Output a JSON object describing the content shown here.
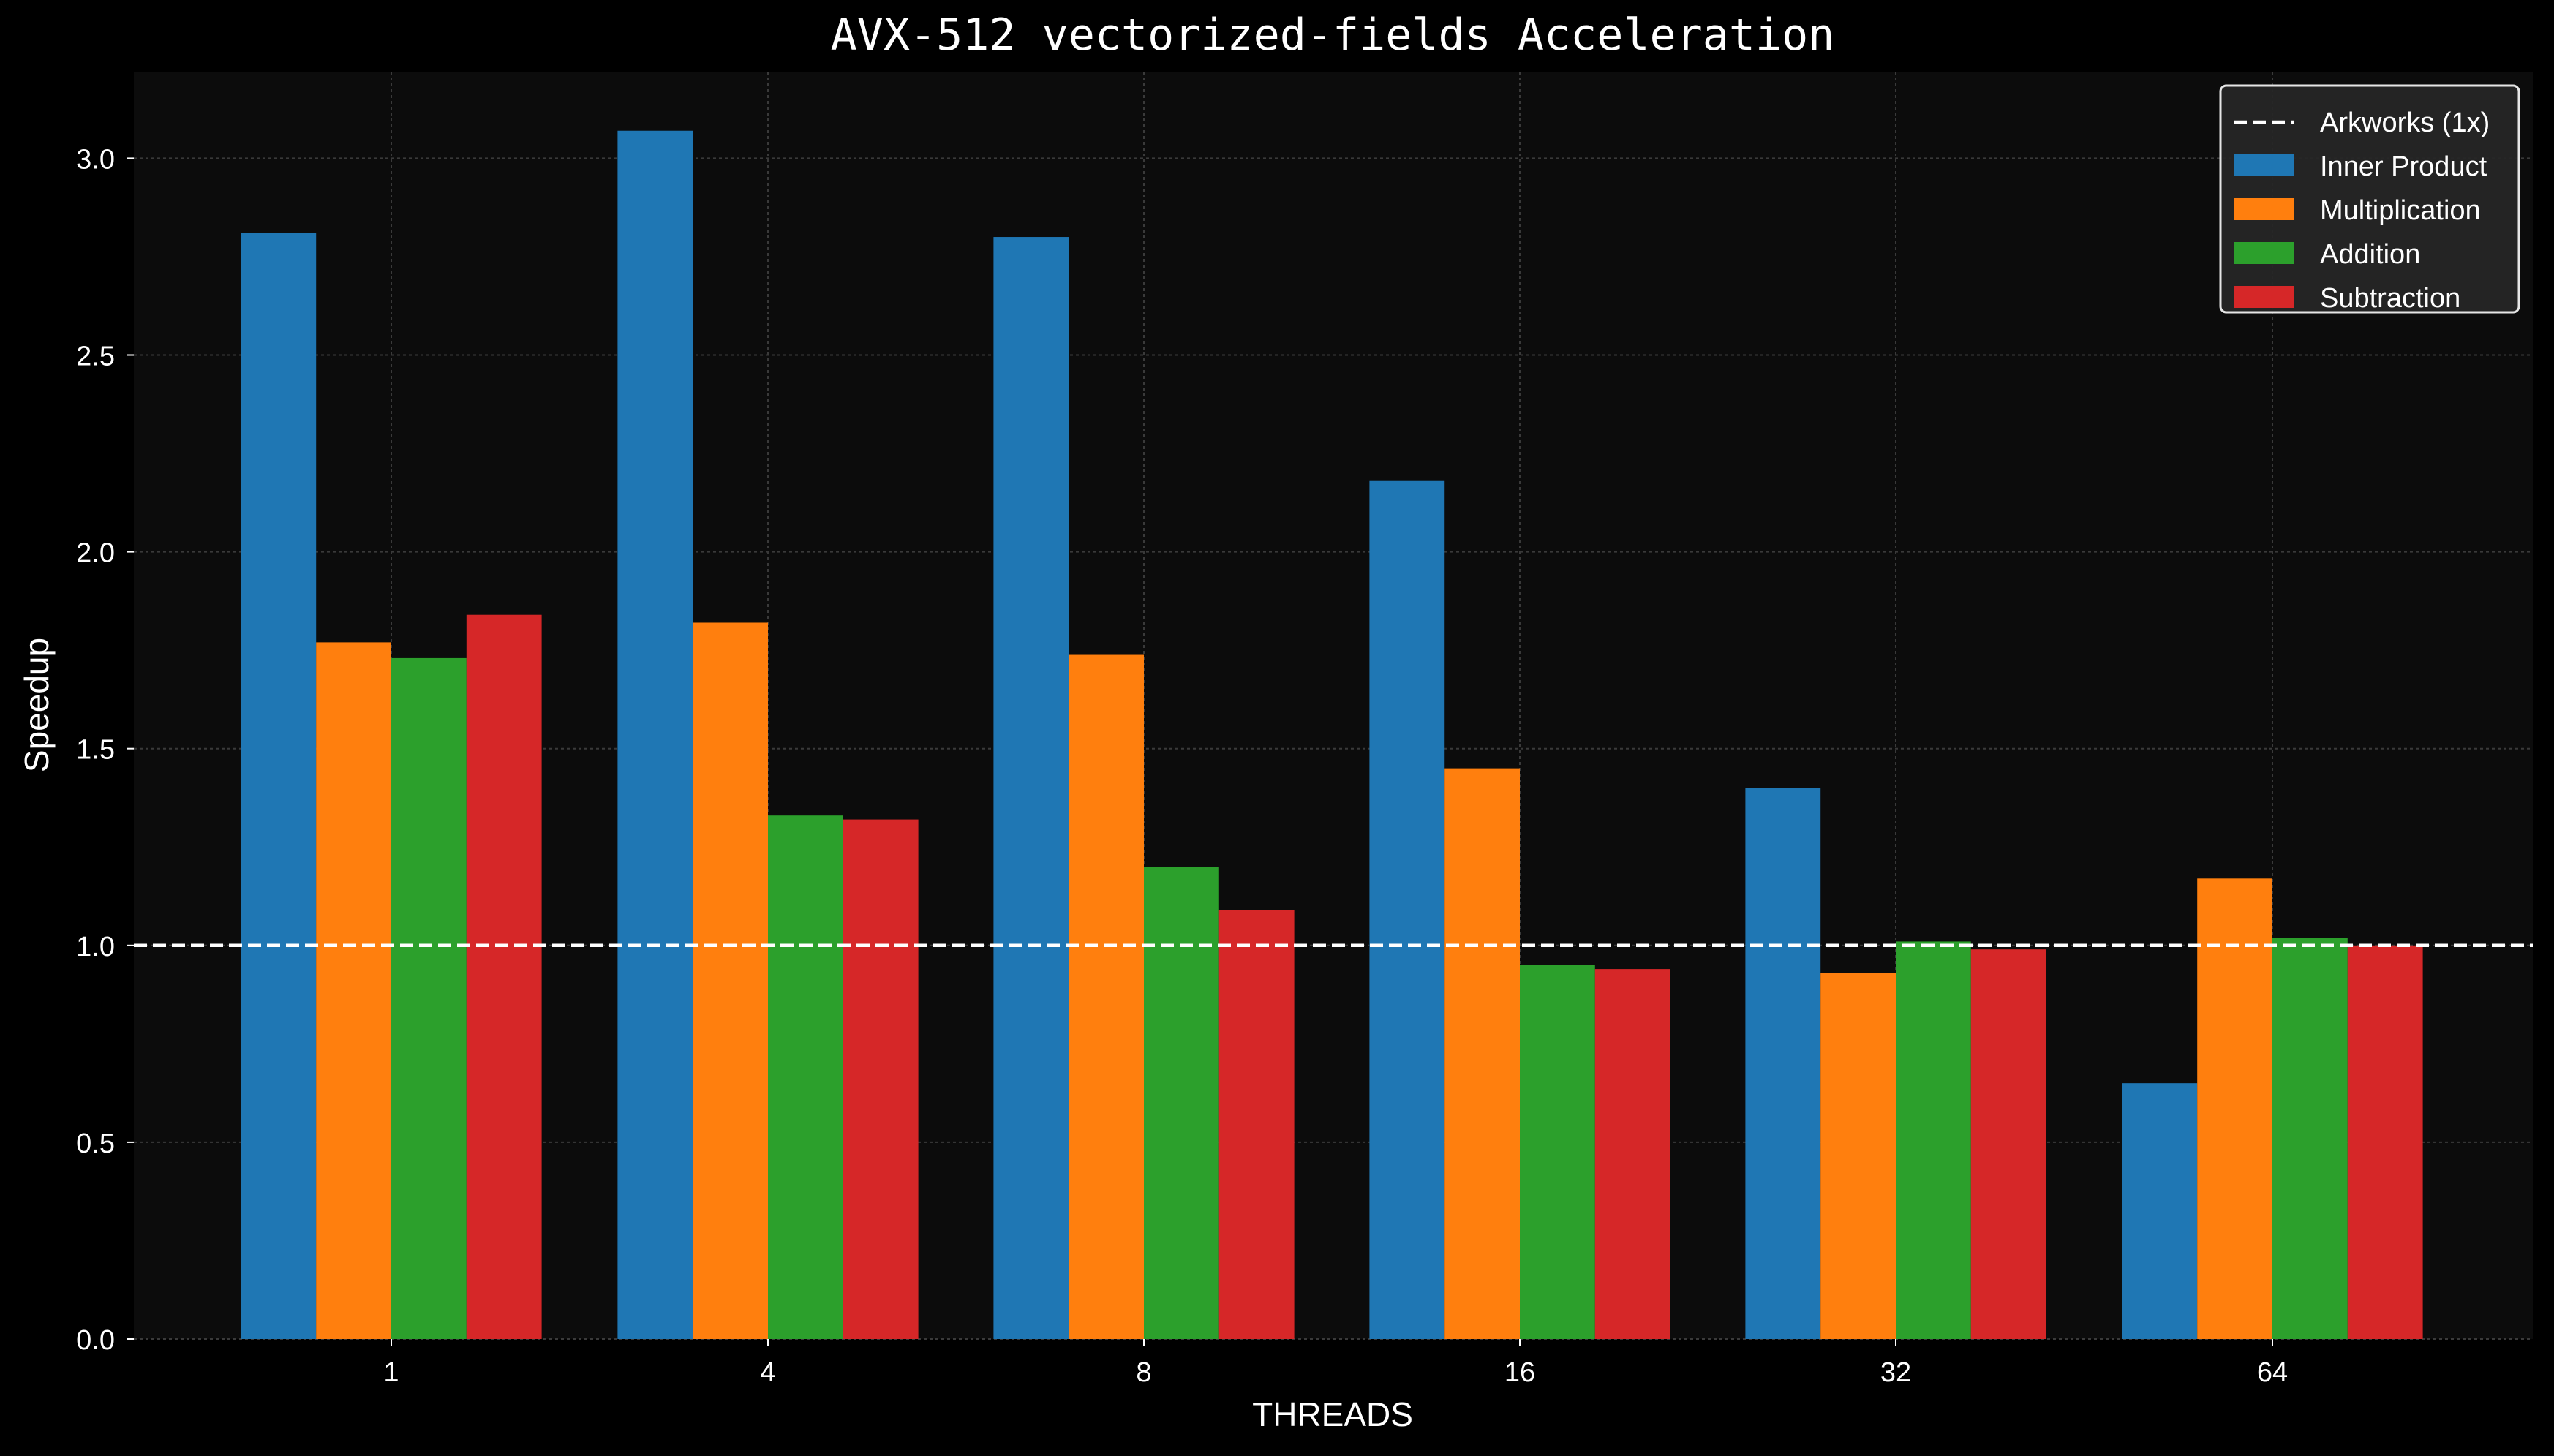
{
  "chart_data": {
    "type": "bar",
    "title": "AVX-512 vectorized-fields Acceleration",
    "xlabel": "THREADS",
    "ylabel": "Speedup",
    "categories": [
      "1",
      "4",
      "8",
      "16",
      "32",
      "64"
    ],
    "ylim": [
      0,
      3.22
    ],
    "yticks": [
      "0.0",
      "0.5",
      "1.0",
      "1.5",
      "2.0",
      "2.5",
      "3.0"
    ],
    "grid": true,
    "legend_position": "top-right",
    "baseline": {
      "name": "Arkworks (1x)",
      "value": 1.0,
      "color": "#ffffff",
      "style": "dashed"
    },
    "series": [
      {
        "name": "Inner Product",
        "color": "#1f77b4",
        "values": [
          2.81,
          3.07,
          2.8,
          2.18,
          1.4,
          0.65
        ]
      },
      {
        "name": "Multiplication",
        "color": "#ff7f0e",
        "values": [
          1.77,
          1.82,
          1.74,
          1.45,
          0.93,
          1.17
        ]
      },
      {
        "name": "Addition",
        "color": "#2ca02c",
        "values": [
          1.73,
          1.33,
          1.2,
          0.95,
          1.01,
          1.02
        ]
      },
      {
        "name": "Subtraction",
        "color": "#d62728",
        "values": [
          1.84,
          1.32,
          1.09,
          0.94,
          0.99,
          1.0
        ]
      }
    ]
  }
}
